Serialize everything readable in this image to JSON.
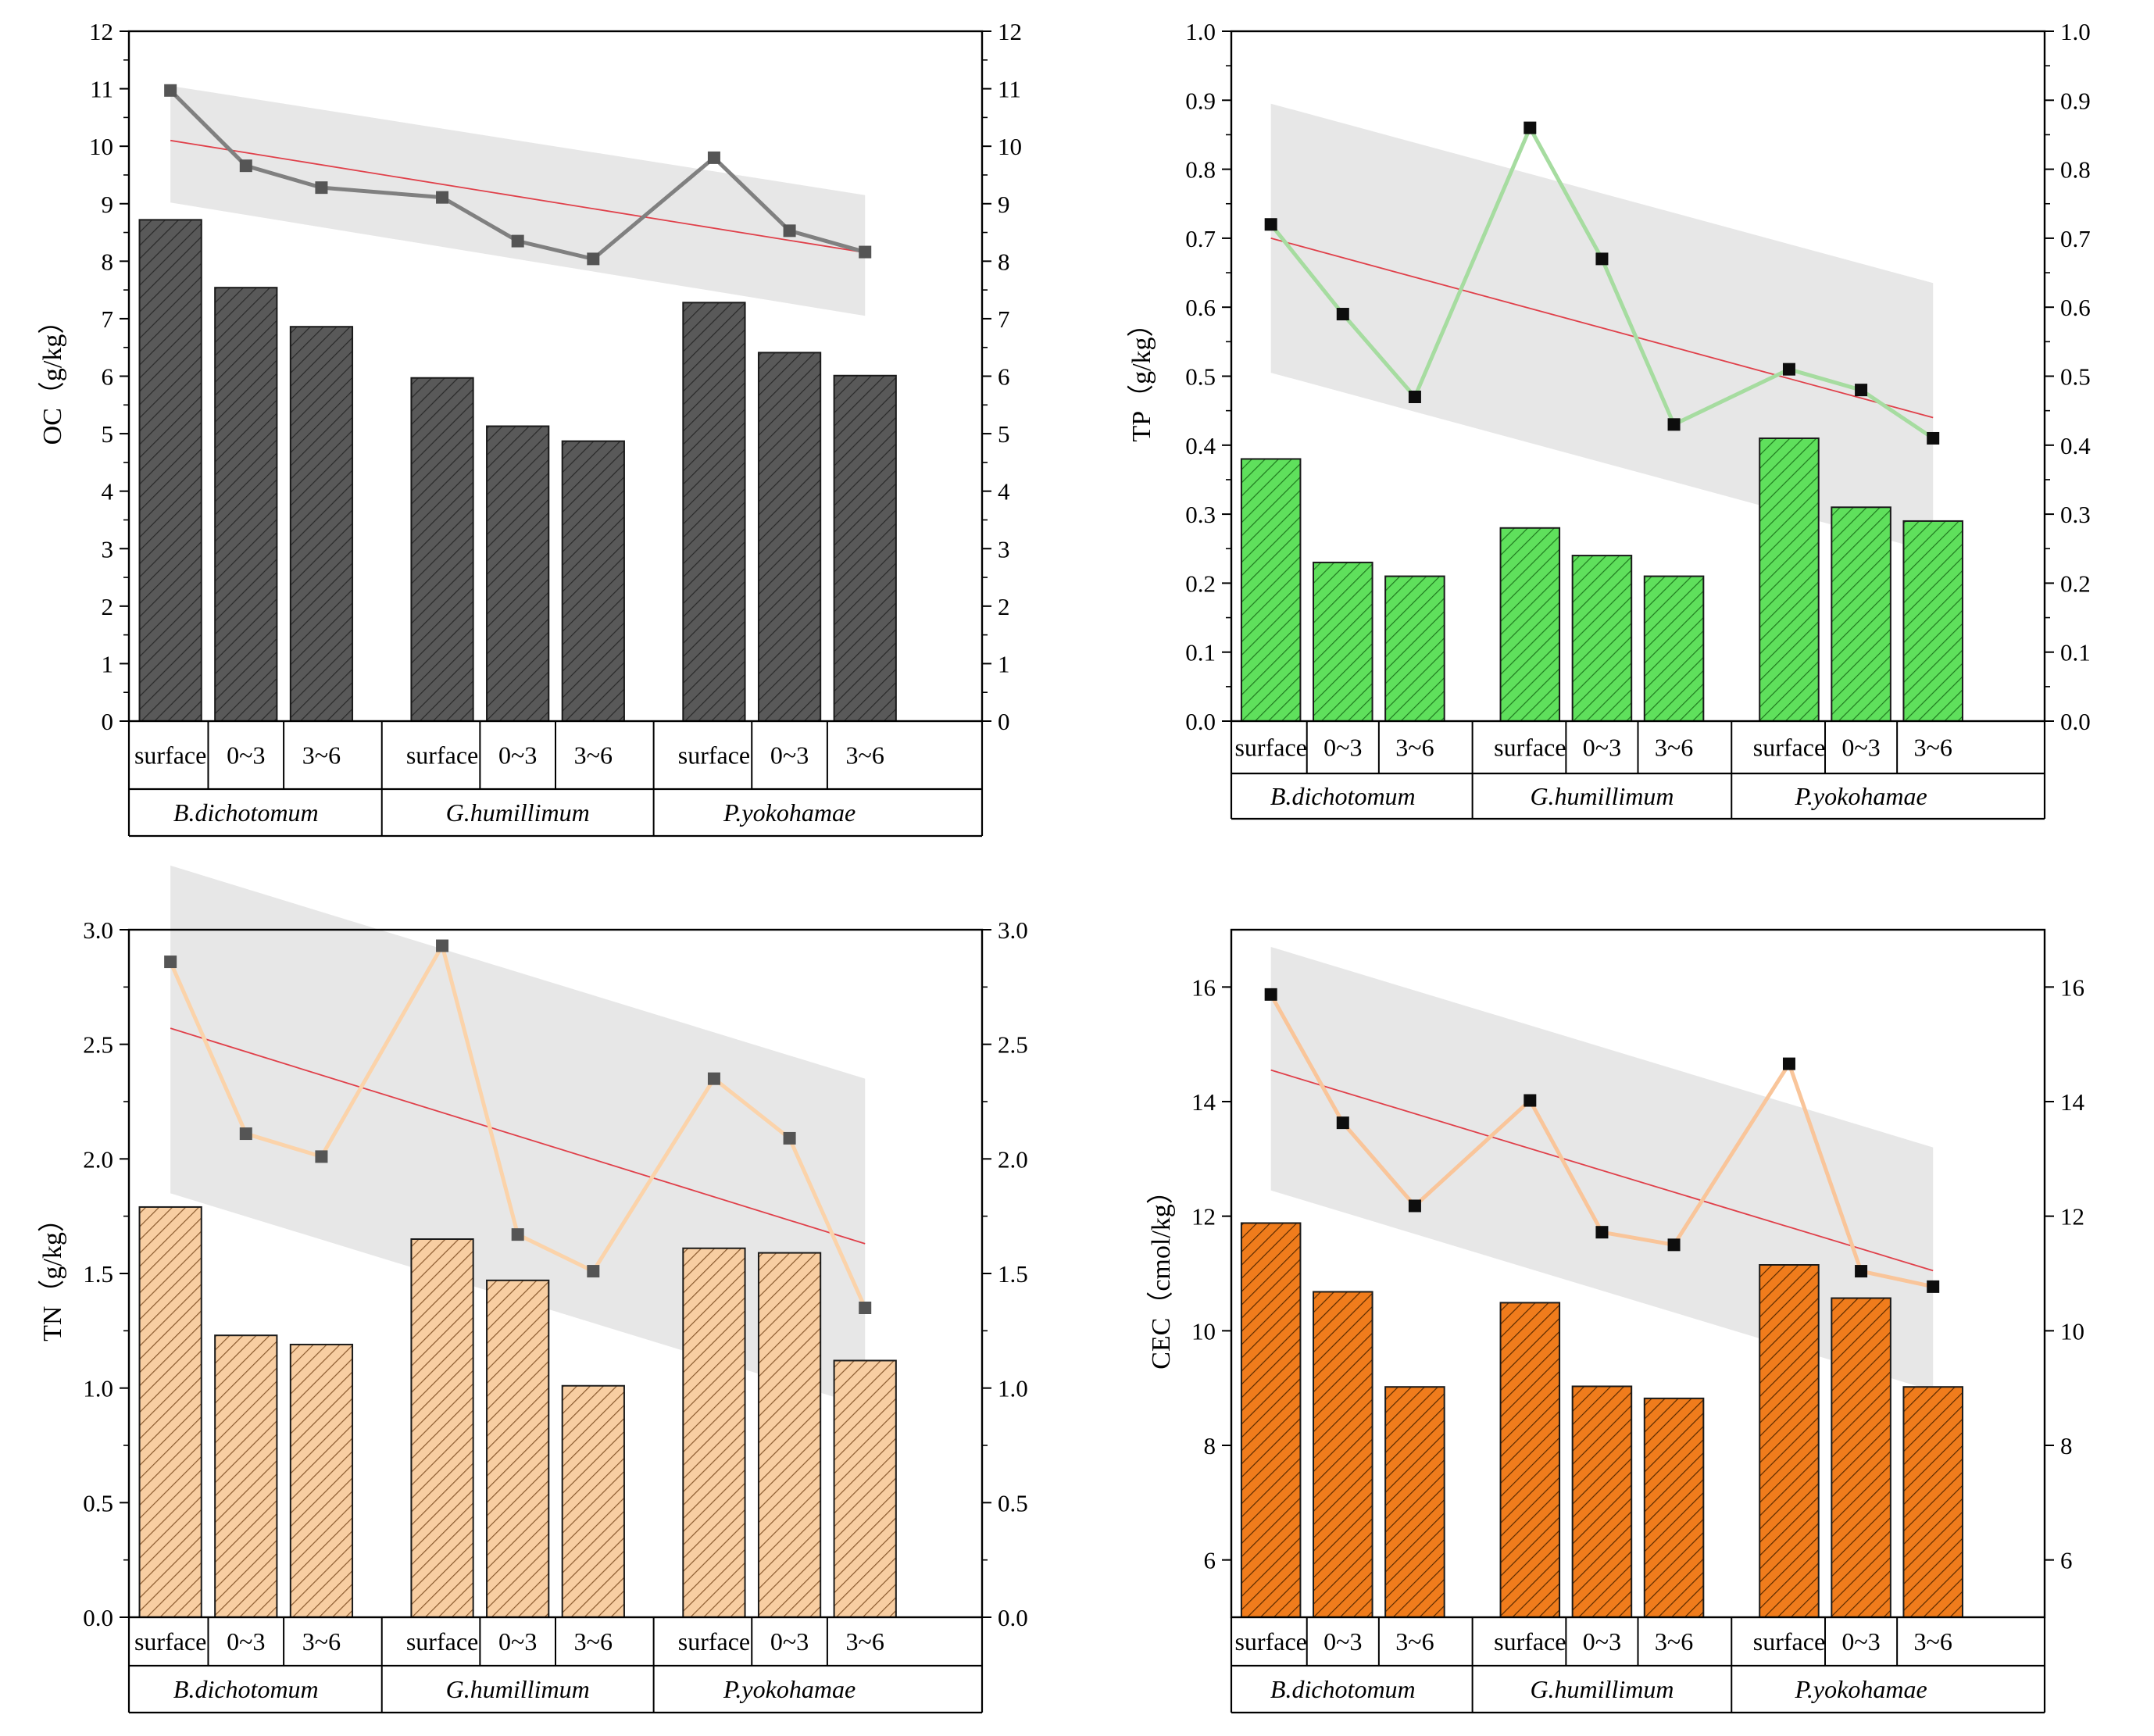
{
  "figure": {
    "groups": [
      "B.dichotomum",
      "G.humillimum",
      "P.yokohamae"
    ],
    "depths": [
      "surface",
      "0~3",
      "3~6"
    ]
  },
  "chart_data": [
    {
      "id": "oc",
      "type": "bar+line",
      "ylabel": "OC（g/kg）",
      "ylim": [
        0,
        12
      ],
      "yticks": [
        0,
        1,
        2,
        3,
        4,
        5,
        6,
        7,
        8,
        9,
        10,
        11,
        12
      ],
      "tick_decimals": 0,
      "categories": [
        "surface",
        "0~3",
        "3~6",
        "surface",
        "0~3",
        "3~6",
        "surface",
        "0~3",
        "3~6"
      ],
      "bar_values": [
        8.72,
        7.54,
        6.86,
        5.97,
        5.13,
        4.87,
        7.28,
        6.41,
        6.01
      ],
      "line_values": [
        10.97,
        9.66,
        9.28,
        9.11,
        8.35,
        8.04,
        9.8,
        8.53,
        8.16
      ],
      "trend": [
        10.1,
        8.15
      ],
      "band_upper": [
        11.05,
        9.15
      ],
      "band_lower": [
        9.02,
        7.05
      ],
      "colors": {
        "bar": "#595959",
        "hatch": "#2a2a2a",
        "line": "#808080",
        "marker": "#555555"
      }
    },
    {
      "id": "tp",
      "type": "bar+line",
      "ylabel": "TP（g/kg）",
      "ylim": [
        0,
        1.0
      ],
      "yticks": [
        0,
        0.1,
        0.2,
        0.3,
        0.4,
        0.5,
        0.6,
        0.7,
        0.8,
        0.9,
        1.0
      ],
      "tick_decimals": 1,
      "categories": [
        "surface",
        "0~3",
        "3~6",
        "surface",
        "0~3",
        "3~6",
        "surface",
        "0~3",
        "3~6"
      ],
      "bar_values": [
        0.38,
        0.23,
        0.21,
        0.28,
        0.24,
        0.21,
        0.41,
        0.31,
        0.29
      ],
      "line_values": [
        0.72,
        0.59,
        0.47,
        0.86,
        0.67,
        0.43,
        0.51,
        0.48,
        0.41
      ],
      "trend": [
        0.7,
        0.44
      ],
      "band_upper": [
        0.895,
        0.635
      ],
      "band_lower": [
        0.505,
        0.245
      ],
      "colors": {
        "bar": "#5fe05c",
        "hatch": "#1f7a1f",
        "line": "#a6dca0",
        "marker": "#0d0d0d"
      }
    },
    {
      "id": "tn",
      "type": "bar+line",
      "ylabel": "TN（g/kg）",
      "ylim": [
        0,
        3.0
      ],
      "yticks": [
        0,
        0.5,
        1.0,
        1.5,
        2.0,
        2.5,
        3.0
      ],
      "tick_decimals": 1,
      "categories": [
        "surface",
        "0~3",
        "3~6",
        "surface",
        "0~3",
        "3~6",
        "surface",
        "0~3",
        "3~6"
      ],
      "bar_values": [
        1.79,
        1.23,
        1.19,
        1.65,
        1.47,
        1.01,
        1.61,
        1.59,
        1.12
      ],
      "line_values": [
        2.86,
        2.11,
        2.01,
        2.93,
        1.67,
        1.51,
        2.35,
        2.09,
        1.35
      ],
      "trend": [
        2.57,
        1.63
      ],
      "band_upper": [
        3.28,
        2.35
      ],
      "band_lower": [
        1.85,
        0.92
      ],
      "colors": {
        "bar": "#f8cea2",
        "hatch": "#8a5a2e",
        "line": "#fbd3aa",
        "marker": "#555555"
      }
    },
    {
      "id": "cec",
      "type": "bar+line",
      "ylabel": "CEC（cmol/kg）",
      "ylim": [
        5,
        17
      ],
      "yticks": [
        6,
        8,
        10,
        12,
        14,
        16
      ],
      "tick_decimals": 0,
      "categories": [
        "surface",
        "0~3",
        "3~6",
        "surface",
        "0~3",
        "3~6",
        "surface",
        "0~3",
        "3~6"
      ],
      "bar_values": [
        11.88,
        10.68,
        9.02,
        10.49,
        9.03,
        8.82,
        11.15,
        10.57,
        9.02
      ],
      "line_values": [
        15.87,
        13.63,
        12.18,
        14.02,
        11.72,
        11.5,
        14.66,
        11.04,
        10.77
      ],
      "trend": [
        14.55,
        11.05
      ],
      "band_upper": [
        16.7,
        13.2
      ],
      "band_lower": [
        12.45,
        8.95
      ],
      "colors": {
        "bar": "#f07c1c",
        "hatch": "#5a2a00",
        "line": "#f9c59a",
        "marker": "#0d0d0d"
      }
    }
  ],
  "style": {
    "trend_color": "#e0404a",
    "band_color": "#e7e7e7",
    "axis_color": "#000000"
  }
}
